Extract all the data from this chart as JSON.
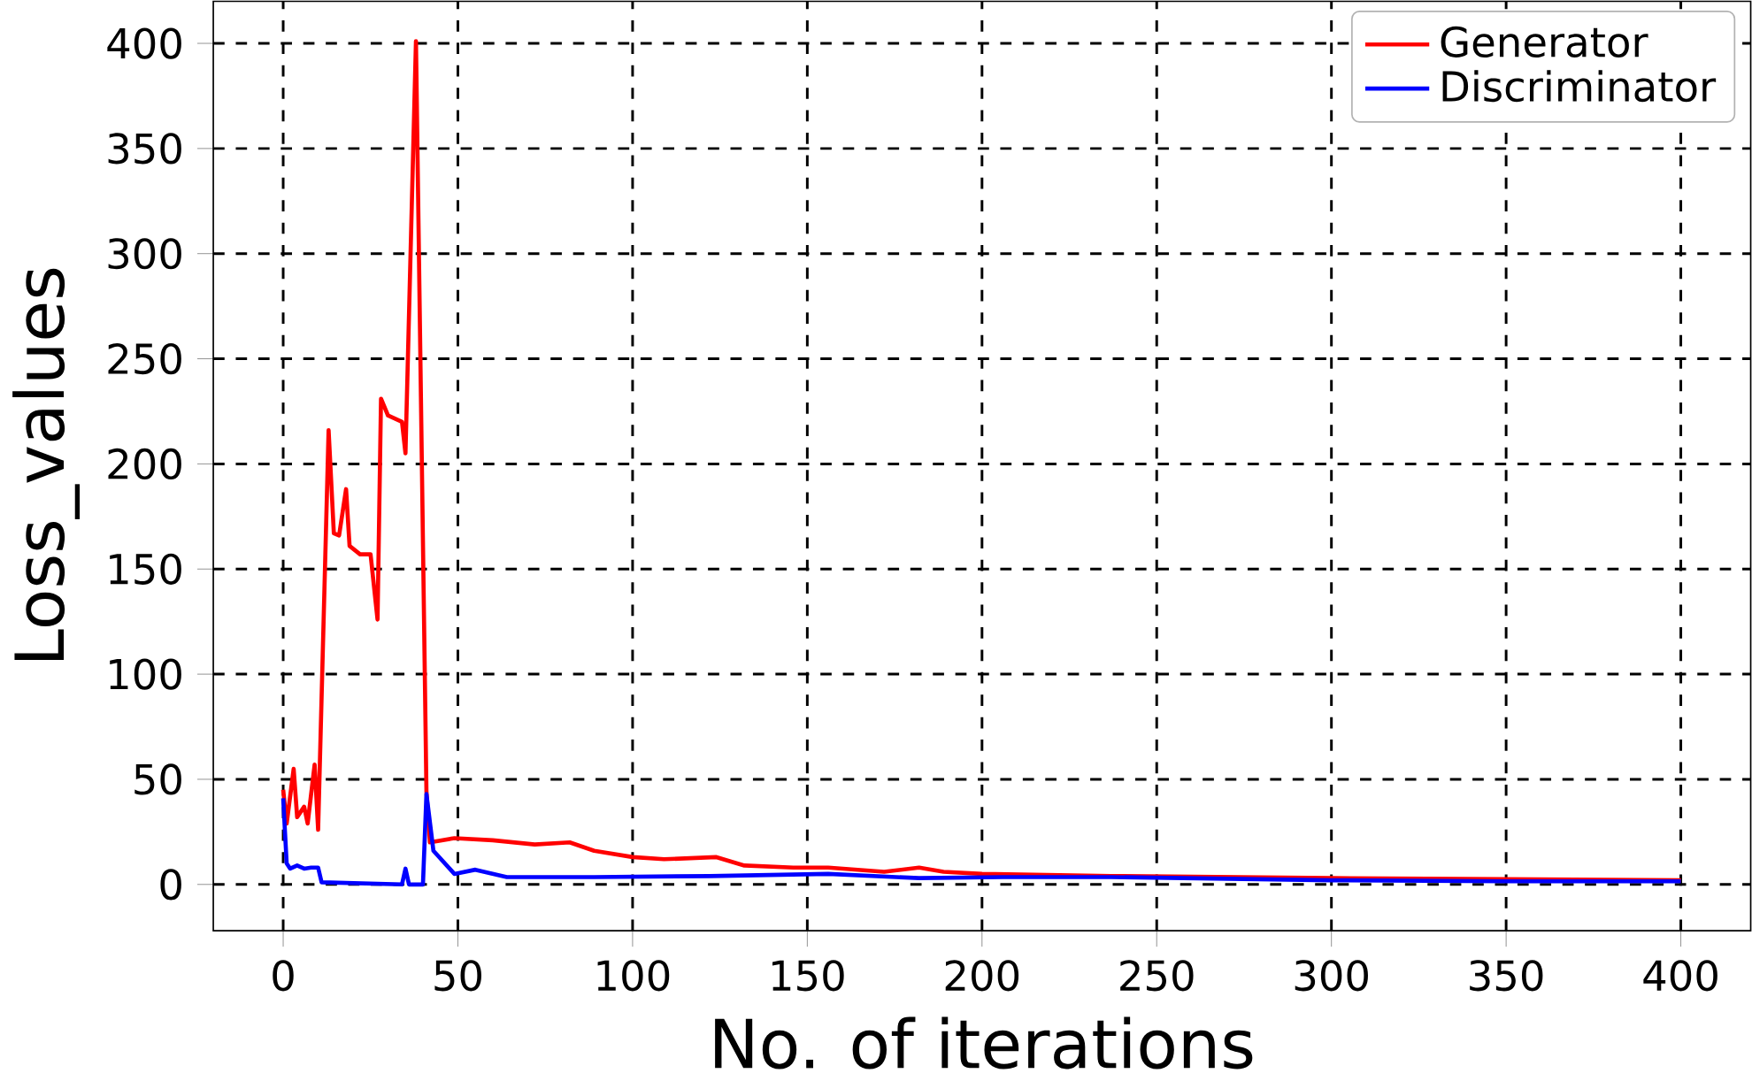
{
  "chart_data": {
    "type": "line",
    "xlabel": "No. of iterations",
    "ylabel": "Loss_values",
    "xlim": [
      -20,
      420
    ],
    "ylim": [
      -22,
      420
    ],
    "xticks": [
      0,
      50,
      100,
      150,
      200,
      250,
      300,
      350,
      400
    ],
    "yticks": [
      0,
      50,
      100,
      150,
      200,
      250,
      300,
      350,
      400
    ],
    "grid": true,
    "legend": "top right",
    "line_style": "solid",
    "series": [
      {
        "name": "Generator",
        "color": "#ff0000",
        "x": [
          0,
          1,
          3,
          4,
          6,
          7,
          9,
          10,
          13,
          14.5,
          16,
          18,
          19,
          22,
          25,
          27,
          28,
          30,
          34,
          35,
          38,
          41,
          42,
          49,
          60,
          72,
          82,
          89,
          100,
          109,
          124,
          132,
          146,
          156,
          172,
          182,
          189,
          200,
          237,
          300,
          350,
          400
        ],
        "values": [
          45,
          29,
          55,
          32,
          37,
          29,
          57,
          26,
          216,
          167,
          166,
          188,
          161,
          157,
          157,
          126,
          231,
          223,
          220,
          205,
          401,
          44,
          20,
          22,
          21,
          19,
          20,
          16,
          13,
          12,
          13,
          9,
          8,
          8,
          6,
          8,
          6,
          5,
          4,
          3,
          2.5,
          2
        ]
      },
      {
        "name": "Discriminator",
        "color": "#0000ff",
        "x": [
          0,
          1,
          2,
          4,
          6,
          8,
          10,
          11,
          34,
          35,
          36,
          39,
          40,
          41,
          43,
          49,
          55,
          64,
          89,
          122,
          156,
          182,
          206,
          237,
          300,
          350,
          400
        ],
        "values": [
          41,
          10,
          7.5,
          9,
          7.5,
          8,
          8,
          1,
          0,
          7.5,
          0,
          0,
          0,
          43,
          16,
          5,
          7,
          3.5,
          3.5,
          4,
          5,
          3,
          3.5,
          3.5,
          2,
          1.5,
          1.5
        ]
      }
    ]
  }
}
